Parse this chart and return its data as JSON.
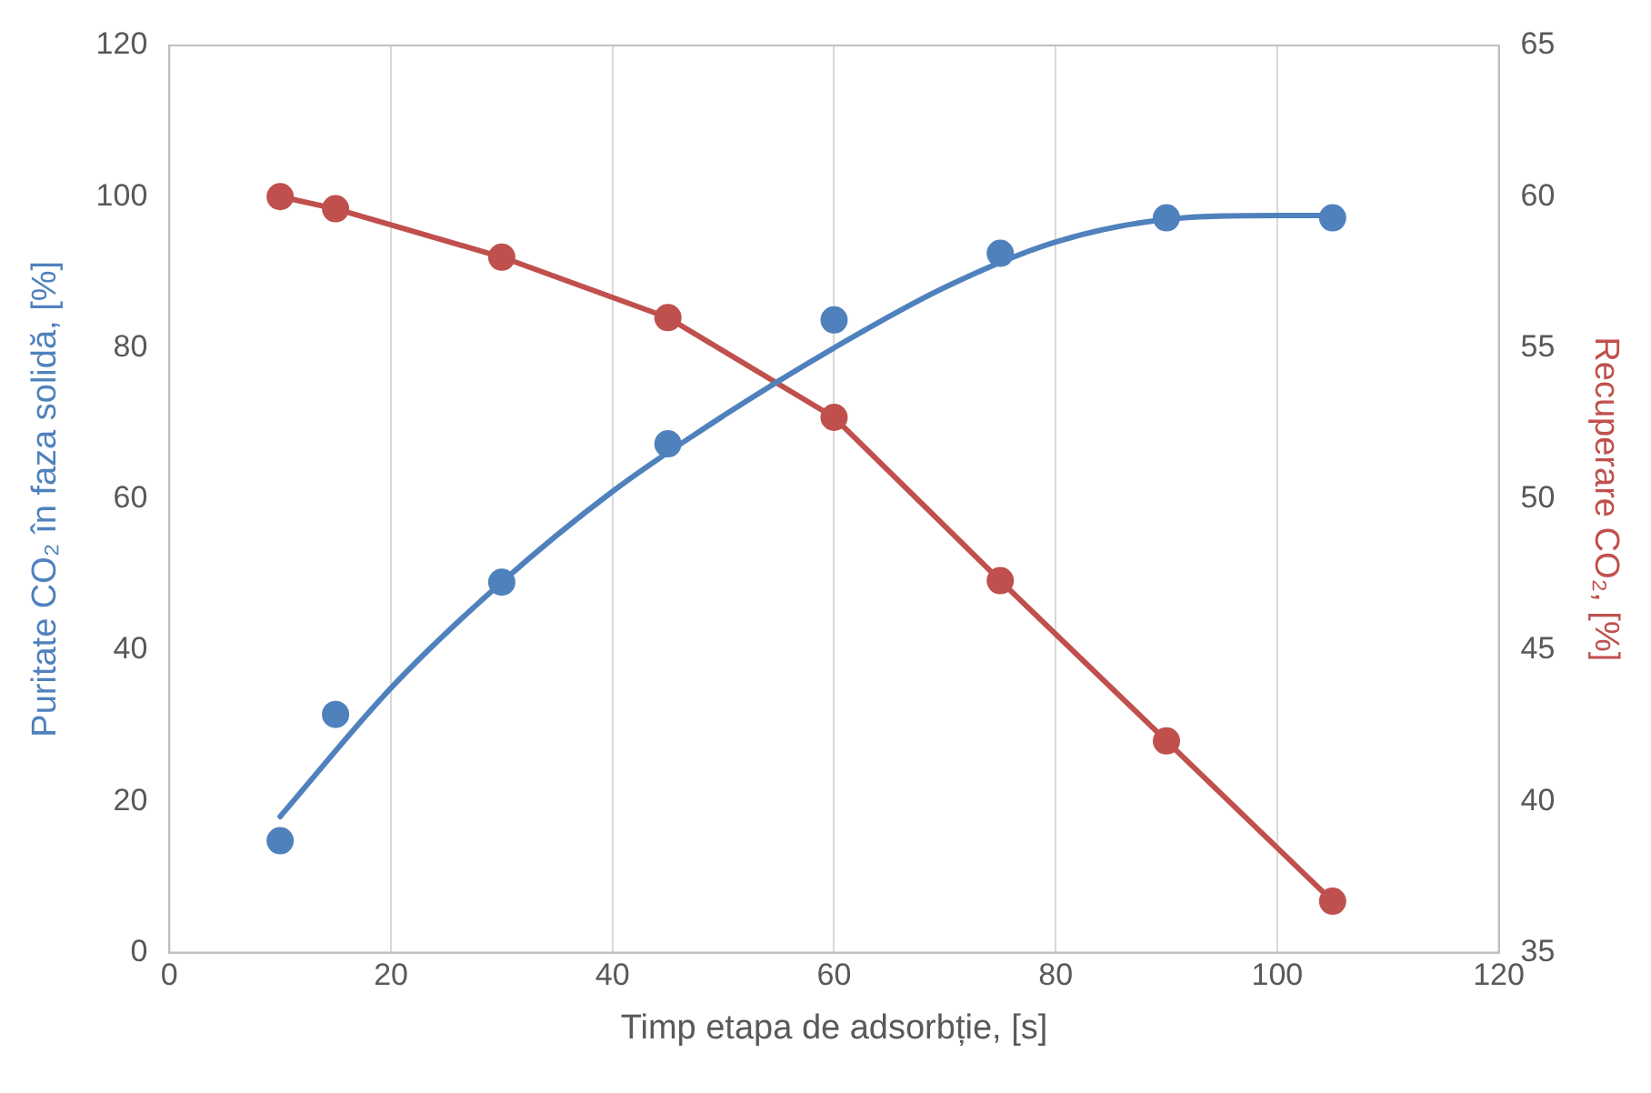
{
  "chart_data": {
    "type": "line",
    "xlabel": "Timp etapa de adsorbție, [s]",
    "ylabel": "Puritate CO₂ în faza solidă, [%]",
    "y2label": "Recuperare CO₂, [%]",
    "xlim": [
      0,
      120
    ],
    "xticks": [
      0,
      20,
      40,
      60,
      80,
      100,
      120
    ],
    "ylim": [
      0,
      120
    ],
    "yticks": [
      0,
      20,
      40,
      60,
      80,
      100,
      120
    ],
    "y2lim": [
      35,
      65
    ],
    "y2ticks": [
      35,
      40,
      45,
      50,
      55,
      60,
      65
    ],
    "grid": "x",
    "legend": false,
    "marker": "circle",
    "series": [
      {
        "type": "scatter",
        "color": "#4f81bd",
        "x": [
          10,
          15,
          30,
          45,
          60,
          75,
          90,
          105
        ],
        "values": [
          14.8,
          31.5,
          49,
          67.3,
          83.7,
          92.5,
          97.2,
          97.2
        ]
      },
      {
        "type": "line",
        "color": "#4f81bd",
        "marker": "none",
        "x": [
          10,
          20,
          30,
          40,
          50,
          60,
          70,
          80,
          90,
          100,
          105
        ],
        "values": [
          18,
          35,
          49,
          61,
          71,
          80,
          88,
          94,
          97,
          97.5,
          97.5
        ]
      },
      {
        "type": "line",
        "color": "#c0504d",
        "axis": "y2",
        "x": [
          10,
          15,
          30,
          45,
          60,
          75,
          90,
          105
        ],
        "values": [
          60,
          59.6,
          58,
          56,
          52.7,
          47.3,
          42,
          36.7
        ]
      }
    ]
  }
}
